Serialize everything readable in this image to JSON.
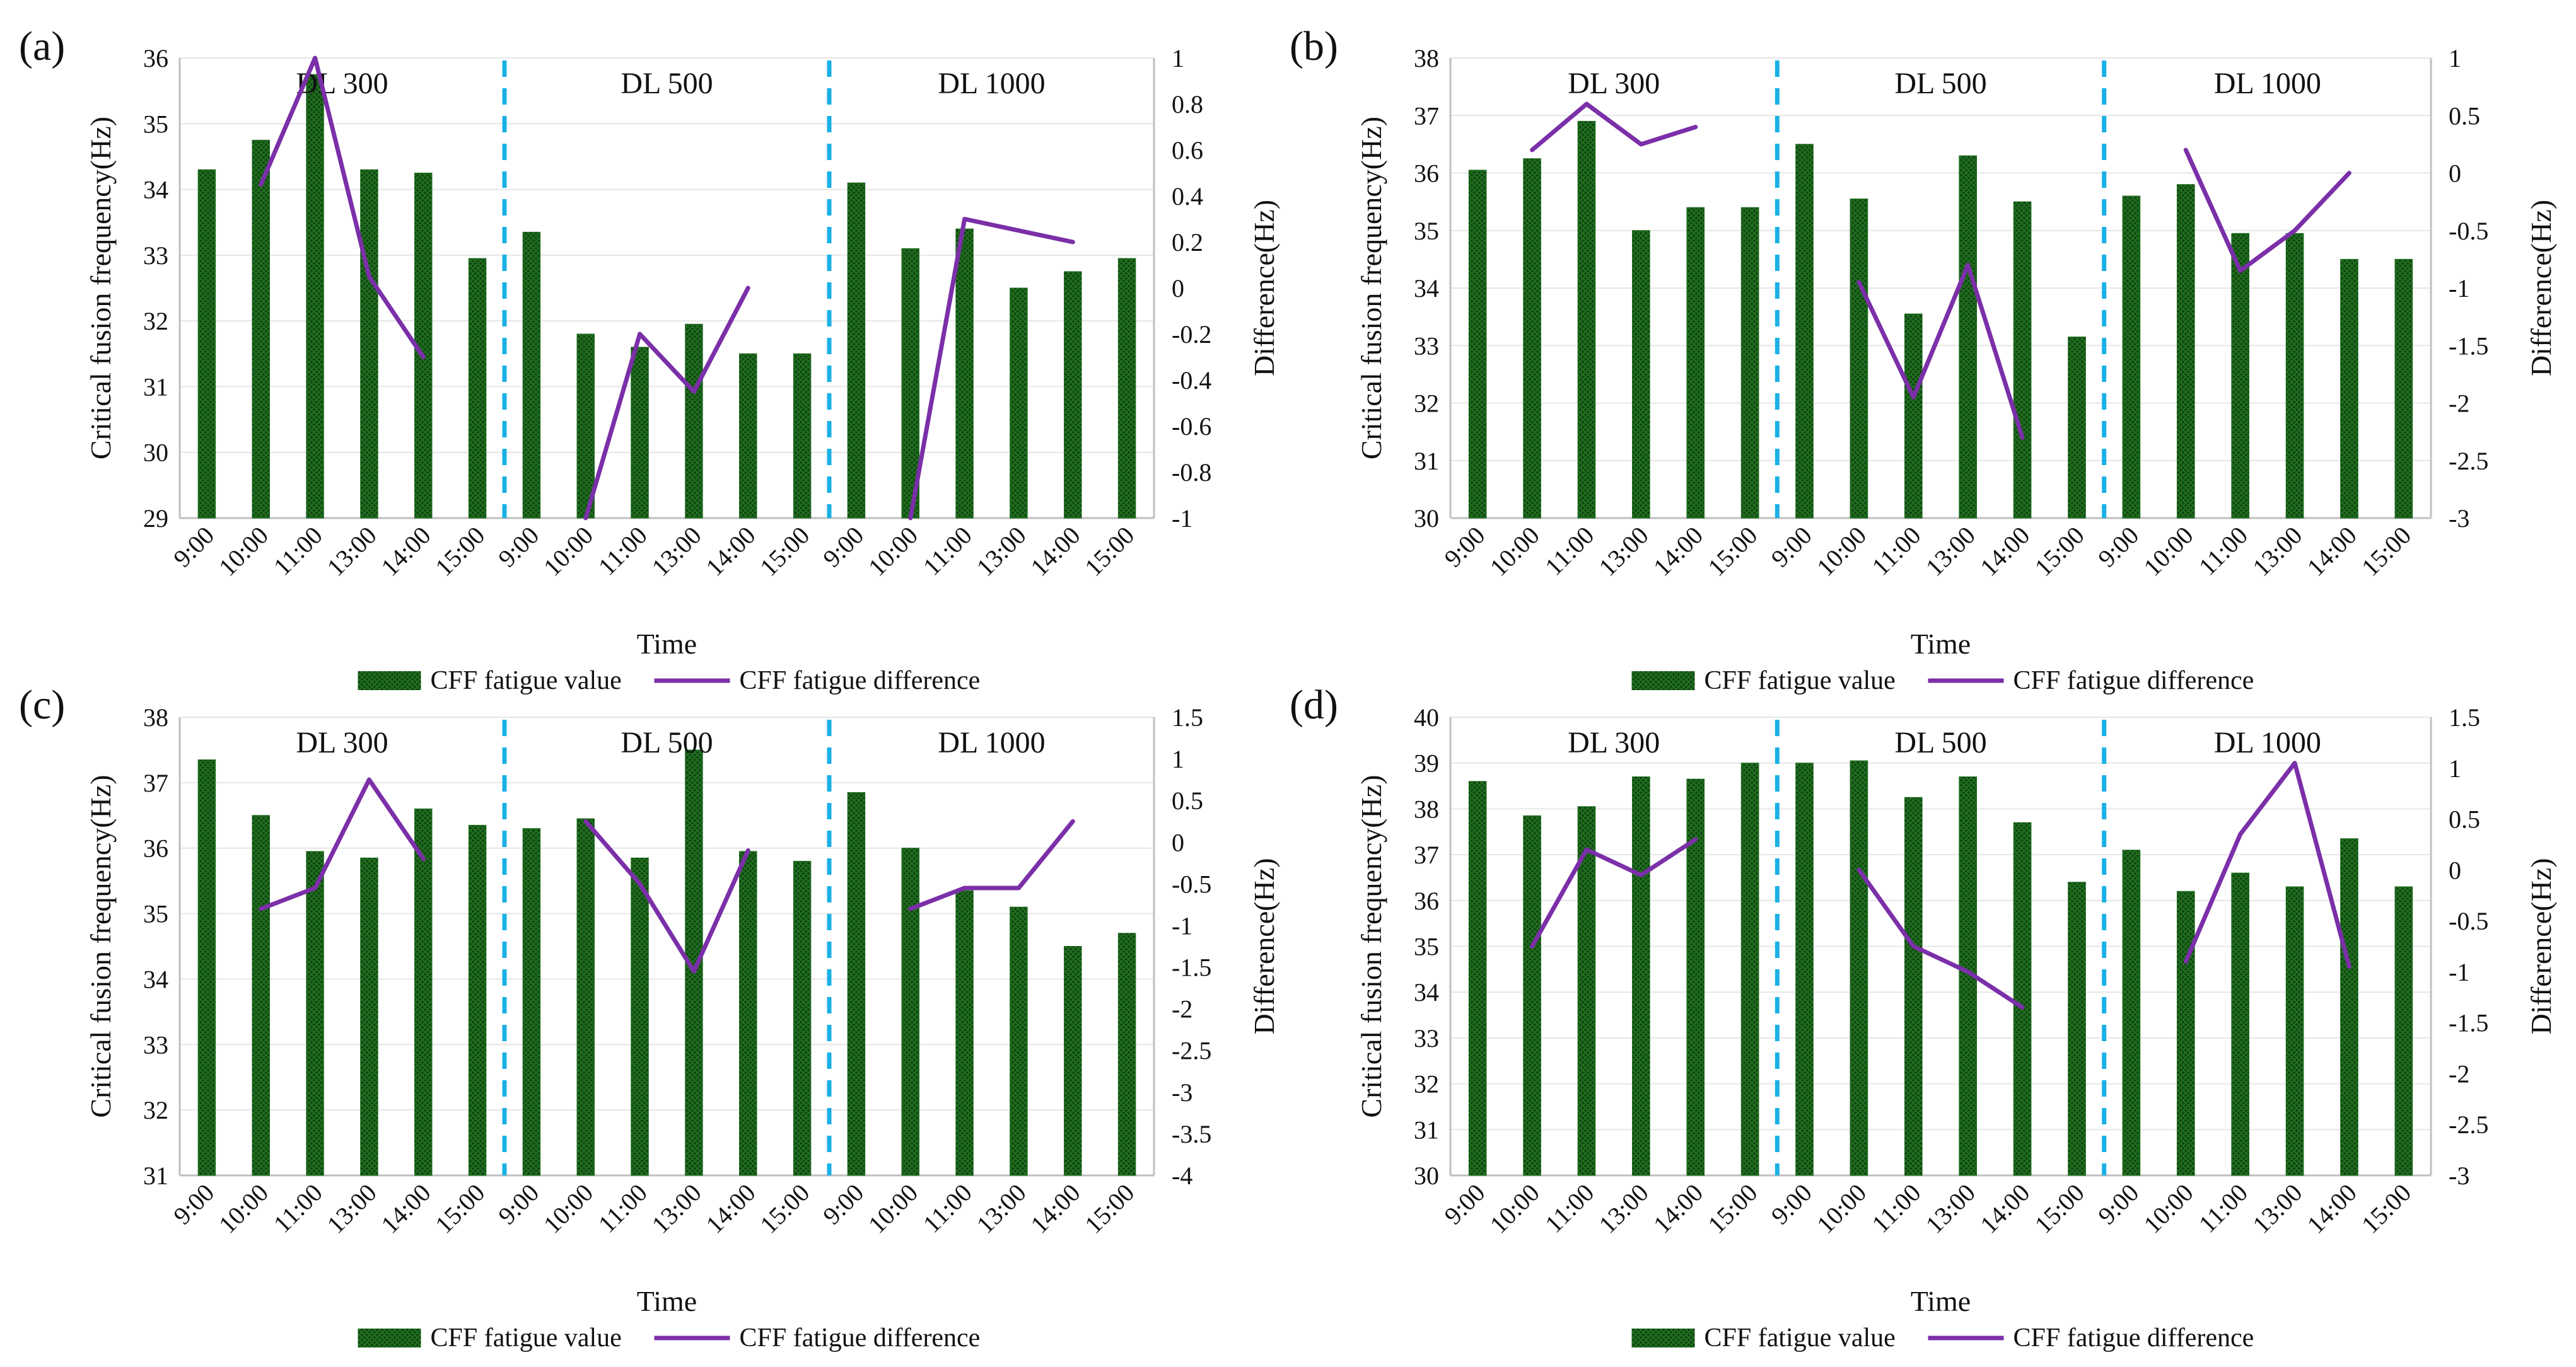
{
  "figure": {
    "legend": {
      "bar_label": "CFF fatigue value",
      "line_label": "CFF fatigue difference"
    },
    "colors": {
      "bar_fill": "#1f6b1f",
      "bar_dots": "#0b3a0b",
      "line": "#7b2fa8",
      "divider": "#1ab0e6",
      "axis": "#bfbfbf",
      "grid": "#e6e6e6"
    }
  },
  "chart_data": [
    {
      "type": "bar",
      "panel": "(a)",
      "xlabel": "Time",
      "ylabel": "Critical fusion frequency(Hz)",
      "y2label": "Difference(Hz)",
      "ylim": [
        29,
        36
      ],
      "ystep": 1,
      "ydecimals": 0,
      "y2lim": [
        -1,
        1
      ],
      "y2step": 0.2,
      "y2decimals": 1,
      "groups": [
        "DL 300",
        "DL 500",
        "DL 1000"
      ],
      "categories": [
        "9:00",
        "10:00",
        "11:00",
        "13:00",
        "14:00",
        "15:00",
        "9:00",
        "10:00",
        "11:00",
        "13:00",
        "14:00",
        "15:00",
        "9:00",
        "10:00",
        "11:00",
        "13:00",
        "14:00",
        "15:00"
      ],
      "show_xlabel": true,
      "show_legend": true,
      "series": [
        {
          "name": "CFF fatigue value",
          "values": [
            34.3,
            34.75,
            35.75,
            34.3,
            34.25,
            32.95,
            33.35,
            31.8,
            31.6,
            31.95,
            31.5,
            31.5,
            34.1,
            33.1,
            33.4,
            32.5,
            32.75,
            32.95
          ]
        },
        {
          "name": "CFF fatigue difference",
          "values": [
            null,
            0.45,
            1.0,
            0.05,
            -0.3,
            null,
            null,
            -1.0,
            -0.2,
            -0.45,
            0.0,
            null,
            null,
            -1.0,
            0.3,
            0.25,
            0.2,
            null
          ]
        }
      ]
    },
    {
      "type": "bar",
      "panel": "(b)",
      "xlabel": "Time",
      "ylabel": "Critical fusion frequency(Hz)",
      "y2label": "Difference(Hz)",
      "ylim": [
        30,
        38
      ],
      "ystep": 1,
      "ydecimals": 0,
      "y2lim": [
        -3,
        1
      ],
      "y2step": 0.5,
      "y2decimals": 1,
      "groups": [
        "DL 300",
        "DL 500",
        "DL 1000"
      ],
      "categories": [
        "9:00",
        "10:00",
        "11:00",
        "13:00",
        "14:00",
        "15:00",
        "9:00",
        "10:00",
        "11:00",
        "13:00",
        "14:00",
        "15:00",
        "9:00",
        "10:00",
        "11:00",
        "13:00",
        "14:00",
        "15:00"
      ],
      "show_xlabel": true,
      "show_legend": true,
      "series": [
        {
          "name": "CFF fatigue value",
          "values": [
            36.05,
            36.25,
            36.9,
            35.0,
            35.4,
            35.4,
            36.5,
            35.55,
            33.55,
            36.3,
            35.5,
            33.15,
            35.6,
            35.8,
            34.95,
            34.95,
            34.5,
            34.5
          ]
        },
        {
          "name": "CFF fatigue difference",
          "values": [
            null,
            0.2,
            0.6,
            0.25,
            0.4,
            null,
            null,
            -0.95,
            -1.95,
            -0.8,
            -2.3,
            null,
            null,
            0.2,
            -0.85,
            -0.5,
            0.0,
            null
          ]
        }
      ]
    },
    {
      "type": "bar",
      "panel": "(c)",
      "xlabel": "Time",
      "ylabel": "Critical fusion frequency(Hz)",
      "y2label": "Difference(Hz)",
      "ylim": [
        31,
        38
      ],
      "ystep": 1,
      "ydecimals": 0,
      "y2lim": [
        -4,
        1.5
      ],
      "y2step": 0.5,
      "y2decimals": 1,
      "groups": [
        "DL 300",
        "DL 500",
        "DL 1000"
      ],
      "categories": [
        "9:00",
        "10:00",
        "11:00",
        "13:00",
        "14:00",
        "15:00",
        "9:00",
        "10:00",
        "11:00",
        "13:00",
        "14:00",
        "15:00",
        "9:00",
        "10:00",
        "11:00",
        "13:00",
        "14:00",
        "15:00"
      ],
      "show_xlabel": true,
      "show_legend": true,
      "series": [
        {
          "name": "CFF fatigue value",
          "values": [
            37.35,
            36.5,
            35.95,
            35.85,
            36.6,
            36.35,
            36.3,
            36.45,
            35.85,
            37.5,
            35.95,
            35.8,
            36.85,
            36.0,
            35.35,
            35.1,
            34.5,
            34.7
          ]
        },
        {
          "name": "CFF fatigue difference",
          "values": [
            null,
            -0.8,
            -0.55,
            0.75,
            -0.2,
            null,
            null,
            0.25,
            -0.5,
            -1.55,
            -0.1,
            null,
            null,
            -0.8,
            -0.55,
            -0.55,
            0.25,
            null
          ]
        }
      ]
    },
    {
      "type": "bar",
      "panel": "(d)",
      "xlabel": "Time",
      "ylabel": "Critical fusion frequency(Hz)",
      "y2label": "Difference(Hz)",
      "ylim": [
        30,
        40
      ],
      "ystep": 1,
      "ydecimals": 0,
      "y2lim": [
        -3,
        1.5
      ],
      "y2step": 0.5,
      "y2decimals": 1,
      "groups": [
        "DL 300",
        "DL 500",
        "DL 1000"
      ],
      "categories": [
        "9:00",
        "10:00",
        "11:00",
        "13:00",
        "14:00",
        "15:00",
        "9:00",
        "10:00",
        "11:00",
        "13:00",
        "14:00",
        "15:00",
        "9:00",
        "10:00",
        "11:00",
        "13:00",
        "14:00",
        "15:00"
      ],
      "show_xlabel": true,
      "show_legend": true,
      "series": [
        {
          "name": "CFF fatigue value",
          "values": [
            38.6,
            37.85,
            38.05,
            38.7,
            38.65,
            39.0,
            39.0,
            39.05,
            38.25,
            38.7,
            37.7,
            36.4,
            37.1,
            36.2,
            36.6,
            36.3,
            37.35,
            36.3
          ]
        },
        {
          "name": "CFF fatigue difference",
          "values": [
            null,
            -0.75,
            0.2,
            -0.05,
            0.3,
            null,
            null,
            0.0,
            -0.75,
            -1.0,
            -1.35,
            null,
            null,
            -0.9,
            0.35,
            1.05,
            -0.95,
            null
          ]
        }
      ]
    }
  ]
}
